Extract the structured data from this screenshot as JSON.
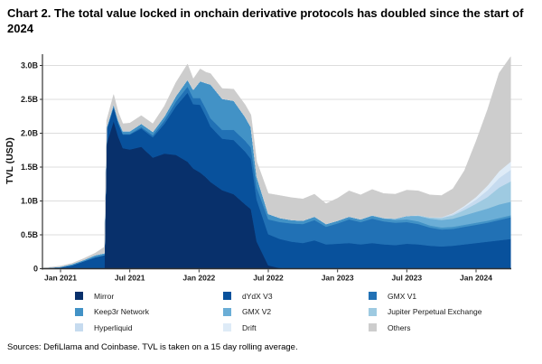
{
  "title": "Chart 2. The total value locked in onchain derivative protocols has doubled since the start of 2024",
  "footer": "Sources: DefiLlama and Coinbase. TVL is taken on a 15 day rolling average.",
  "chart_data": {
    "type": "area",
    "stacked": true,
    "title": "Chart 2. The total value locked in onchain derivative protocols has doubled since the start of 2024",
    "xlabel": "",
    "ylabel": "TVL (USD)",
    "ylim": [
      0,
      3.16
    ],
    "grid": "horizontal",
    "legend_position": "bottom",
    "axis_color": "#333333",
    "grid_color": "#dddddd",
    "yticks": [
      {
        "v": 0,
        "label": "0"
      },
      {
        "v": 0.5,
        "label": "0.5B"
      },
      {
        "v": 1.0,
        "label": "1.0B"
      },
      {
        "v": 1.5,
        "label": "1.5B"
      },
      {
        "v": 2.0,
        "label": "2.0B"
      },
      {
        "v": 2.5,
        "label": "2.5B"
      },
      {
        "v": 3.0,
        "label": "3.0B"
      }
    ],
    "xticks": [
      {
        "m": 0,
        "label": "Jan 2021"
      },
      {
        "m": 6,
        "label": "Jul 2021"
      },
      {
        "m": 12,
        "label": "Jan 2022"
      },
      {
        "m": 18,
        "label": "Jul 2022"
      },
      {
        "m": 24,
        "label": "Jan 2023"
      },
      {
        "m": 30,
        "label": "Jul 2023"
      },
      {
        "m": 36,
        "label": "Jan 2024"
      }
    ],
    "x_unit": "months_since_jan_2021",
    "x_months": [
      -1.5,
      0,
      1,
      2,
      3,
      3.8,
      4,
      4.6,
      5,
      5.4,
      6,
      7,
      8,
      9,
      10,
      11,
      11.5,
      12.1,
      12.6,
      13,
      14,
      15,
      16,
      16.5,
      17,
      18,
      19,
      20,
      21,
      22,
      23,
      24,
      25,
      26,
      27,
      28,
      29,
      30,
      31,
      32,
      33,
      34,
      35,
      36,
      37,
      38,
      39
    ],
    "value_unit": "USD billions",
    "series": [
      {
        "name": "Mirror",
        "color": "#08306b",
        "values": [
          0,
          0,
          0,
          0,
          0,
          0,
          1.85,
          2.18,
          1.95,
          1.78,
          1.76,
          1.8,
          1.64,
          1.7,
          1.68,
          1.58,
          1.48,
          1.42,
          1.35,
          1.28,
          1.16,
          1.1,
          0.95,
          0.88,
          0.4,
          0.05,
          0.01,
          0,
          0,
          0,
          0,
          0,
          0,
          0,
          0,
          0,
          0,
          0,
          0,
          0,
          0,
          0,
          0,
          0,
          0,
          0,
          0
        ]
      },
      {
        "name": "dYdX V3",
        "color": "#08519c",
        "values": [
          0.01,
          0.02,
          0.05,
          0.11,
          0.17,
          0.2,
          0.21,
          0.21,
          0.2,
          0.2,
          0.22,
          0.27,
          0.3,
          0.44,
          0.72,
          1.02,
          0.95,
          1.0,
          0.9,
          0.82,
          0.76,
          0.8,
          0.78,
          0.74,
          0.62,
          0.46,
          0.43,
          0.4,
          0.38,
          0.42,
          0.36,
          0.37,
          0.38,
          0.36,
          0.38,
          0.36,
          0.35,
          0.37,
          0.36,
          0.34,
          0.33,
          0.34,
          0.36,
          0.38,
          0.4,
          0.42,
          0.44
        ]
      },
      {
        "name": "GMX V1",
        "color": "#2171b5",
        "values": [
          0,
          0,
          0,
          0,
          0,
          0,
          0,
          0,
          0,
          0.01,
          0.01,
          0.02,
          0.03,
          0.05,
          0.07,
          0.09,
          0.09,
          0.1,
          0.11,
          0.12,
          0.13,
          0.15,
          0.16,
          0.17,
          0.18,
          0.22,
          0.25,
          0.27,
          0.28,
          0.3,
          0.26,
          0.3,
          0.35,
          0.33,
          0.36,
          0.34,
          0.33,
          0.32,
          0.3,
          0.27,
          0.25,
          0.25,
          0.26,
          0.27,
          0.28,
          0.3,
          0.32
        ]
      },
      {
        "name": "Keep3r Network",
        "color": "#4292c6",
        "values": [
          0,
          0.01,
          0.02,
          0.02,
          0.03,
          0.03,
          0.03,
          0.04,
          0.04,
          0.04,
          0.04,
          0.05,
          0.05,
          0.06,
          0.08,
          0.1,
          0.12,
          0.25,
          0.38,
          0.5,
          0.46,
          0.43,
          0.35,
          0.3,
          0.16,
          0.08,
          0.06,
          0.05,
          0.05,
          0.05,
          0.04,
          0.04,
          0.04,
          0.04,
          0.04,
          0.04,
          0.04,
          0.04,
          0.04,
          0.03,
          0.03,
          0.03,
          0.03,
          0.03,
          0.03,
          0.03,
          0.03
        ]
      },
      {
        "name": "GMX V2",
        "color": "#6baed6",
        "values": [
          0,
          0,
          0,
          0,
          0,
          0,
          0,
          0,
          0,
          0,
          0,
          0,
          0,
          0,
          0,
          0,
          0,
          0,
          0,
          0,
          0,
          0,
          0,
          0,
          0,
          0,
          0,
          0,
          0,
          0,
          0,
          0,
          0,
          0,
          0.01,
          0.01,
          0.02,
          0.05,
          0.08,
          0.1,
          0.11,
          0.12,
          0.14,
          0.16,
          0.18,
          0.2,
          0.2
        ]
      },
      {
        "name": "Jupiter Perpetual Exchange",
        "color": "#9ecae1",
        "values": [
          0,
          0,
          0,
          0,
          0,
          0,
          0,
          0,
          0,
          0,
          0,
          0,
          0,
          0,
          0,
          0,
          0,
          0,
          0,
          0,
          0,
          0,
          0,
          0,
          0,
          0,
          0,
          0,
          0,
          0,
          0,
          0,
          0,
          0,
          0,
          0,
          0,
          0,
          0.01,
          0.02,
          0.03,
          0.05,
          0.08,
          0.12,
          0.17,
          0.25,
          0.3
        ]
      },
      {
        "name": "Hyperliquid",
        "color": "#c6dbef",
        "values": [
          0,
          0,
          0,
          0,
          0,
          0,
          0,
          0,
          0,
          0,
          0,
          0,
          0,
          0,
          0,
          0,
          0,
          0,
          0,
          0,
          0,
          0,
          0,
          0,
          0,
          0,
          0,
          0,
          0,
          0,
          0,
          0,
          0,
          0,
          0,
          0,
          0,
          0,
          0,
          0,
          0.01,
          0.02,
          0.04,
          0.06,
          0.1,
          0.14,
          0.17
        ]
      },
      {
        "name": "Drift",
        "color": "#deebf7",
        "values": [
          0,
          0,
          0,
          0,
          0,
          0,
          0,
          0,
          0,
          0,
          0,
          0,
          0,
          0,
          0,
          0,
          0,
          0,
          0,
          0,
          0,
          0,
          0,
          0,
          0,
          0,
          0,
          0,
          0,
          0,
          0,
          0,
          0,
          0,
          0,
          0,
          0,
          0,
          0,
          0,
          0,
          0.01,
          0.02,
          0.04,
          0.07,
          0.1,
          0.12
        ]
      },
      {
        "name": "Others",
        "color": "#cdcdcd",
        "values": [
          0,
          0.01,
          0.01,
          0.02,
          0.03,
          0.09,
          0.1,
          0.14,
          0.12,
          0.11,
          0.12,
          0.12,
          0.12,
          0.15,
          0.2,
          0.23,
          0.16,
          0.18,
          0.16,
          0.16,
          0.15,
          0.17,
          0.18,
          0.18,
          0.22,
          0.3,
          0.33,
          0.33,
          0.32,
          0.33,
          0.3,
          0.33,
          0.38,
          0.36,
          0.38,
          0.36,
          0.36,
          0.38,
          0.36,
          0.33,
          0.32,
          0.36,
          0.52,
          0.82,
          1.12,
          1.45,
          1.55
        ]
      }
    ],
    "legend_columns": [
      [
        "Mirror",
        "Keep3r Network",
        "Hyperliquid"
      ],
      [
        "dYdX V3",
        "GMX V2",
        "Drift"
      ],
      [
        "GMX V1",
        "Jupiter Perpetual Exchange",
        "Others"
      ]
    ]
  }
}
